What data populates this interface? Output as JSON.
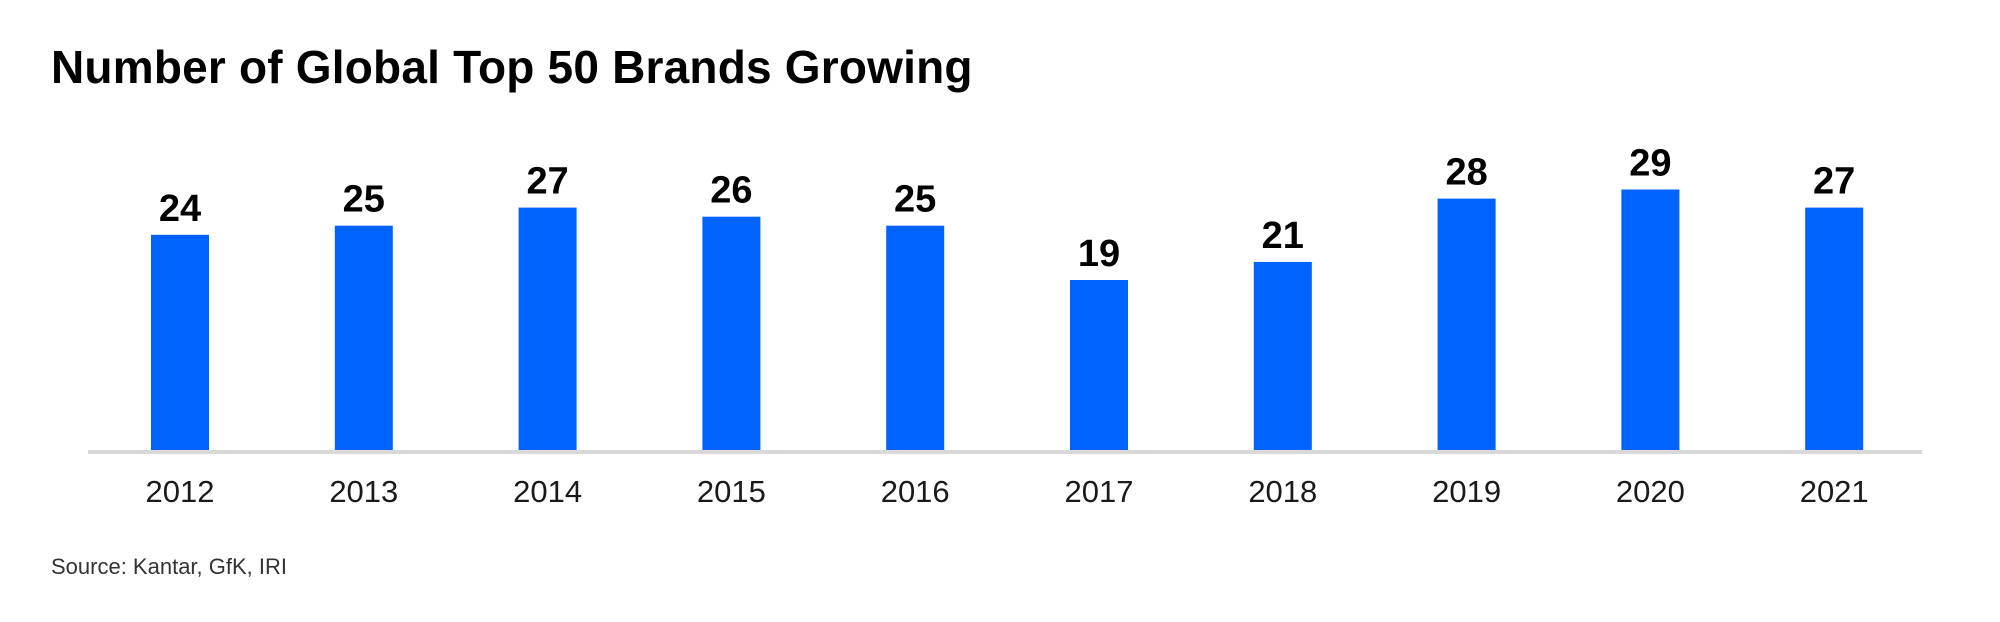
{
  "chart_data": {
    "type": "bar",
    "title": "Number of Global Top 50 Brands Growing",
    "categories": [
      "2012",
      "2013",
      "2014",
      "2015",
      "2016",
      "2017",
      "2018",
      "2019",
      "2020",
      "2021"
    ],
    "values": [
      24,
      25,
      27,
      26,
      25,
      19,
      21,
      28,
      29,
      27
    ],
    "xlabel": "",
    "ylabel": "",
    "ylim": [
      0,
      50
    ],
    "grid": false,
    "data_labels": true,
    "bar_color": "#0062FF",
    "axis_color": "#D9D9D9"
  },
  "source": "Source: Kantar, GfK, IRI"
}
